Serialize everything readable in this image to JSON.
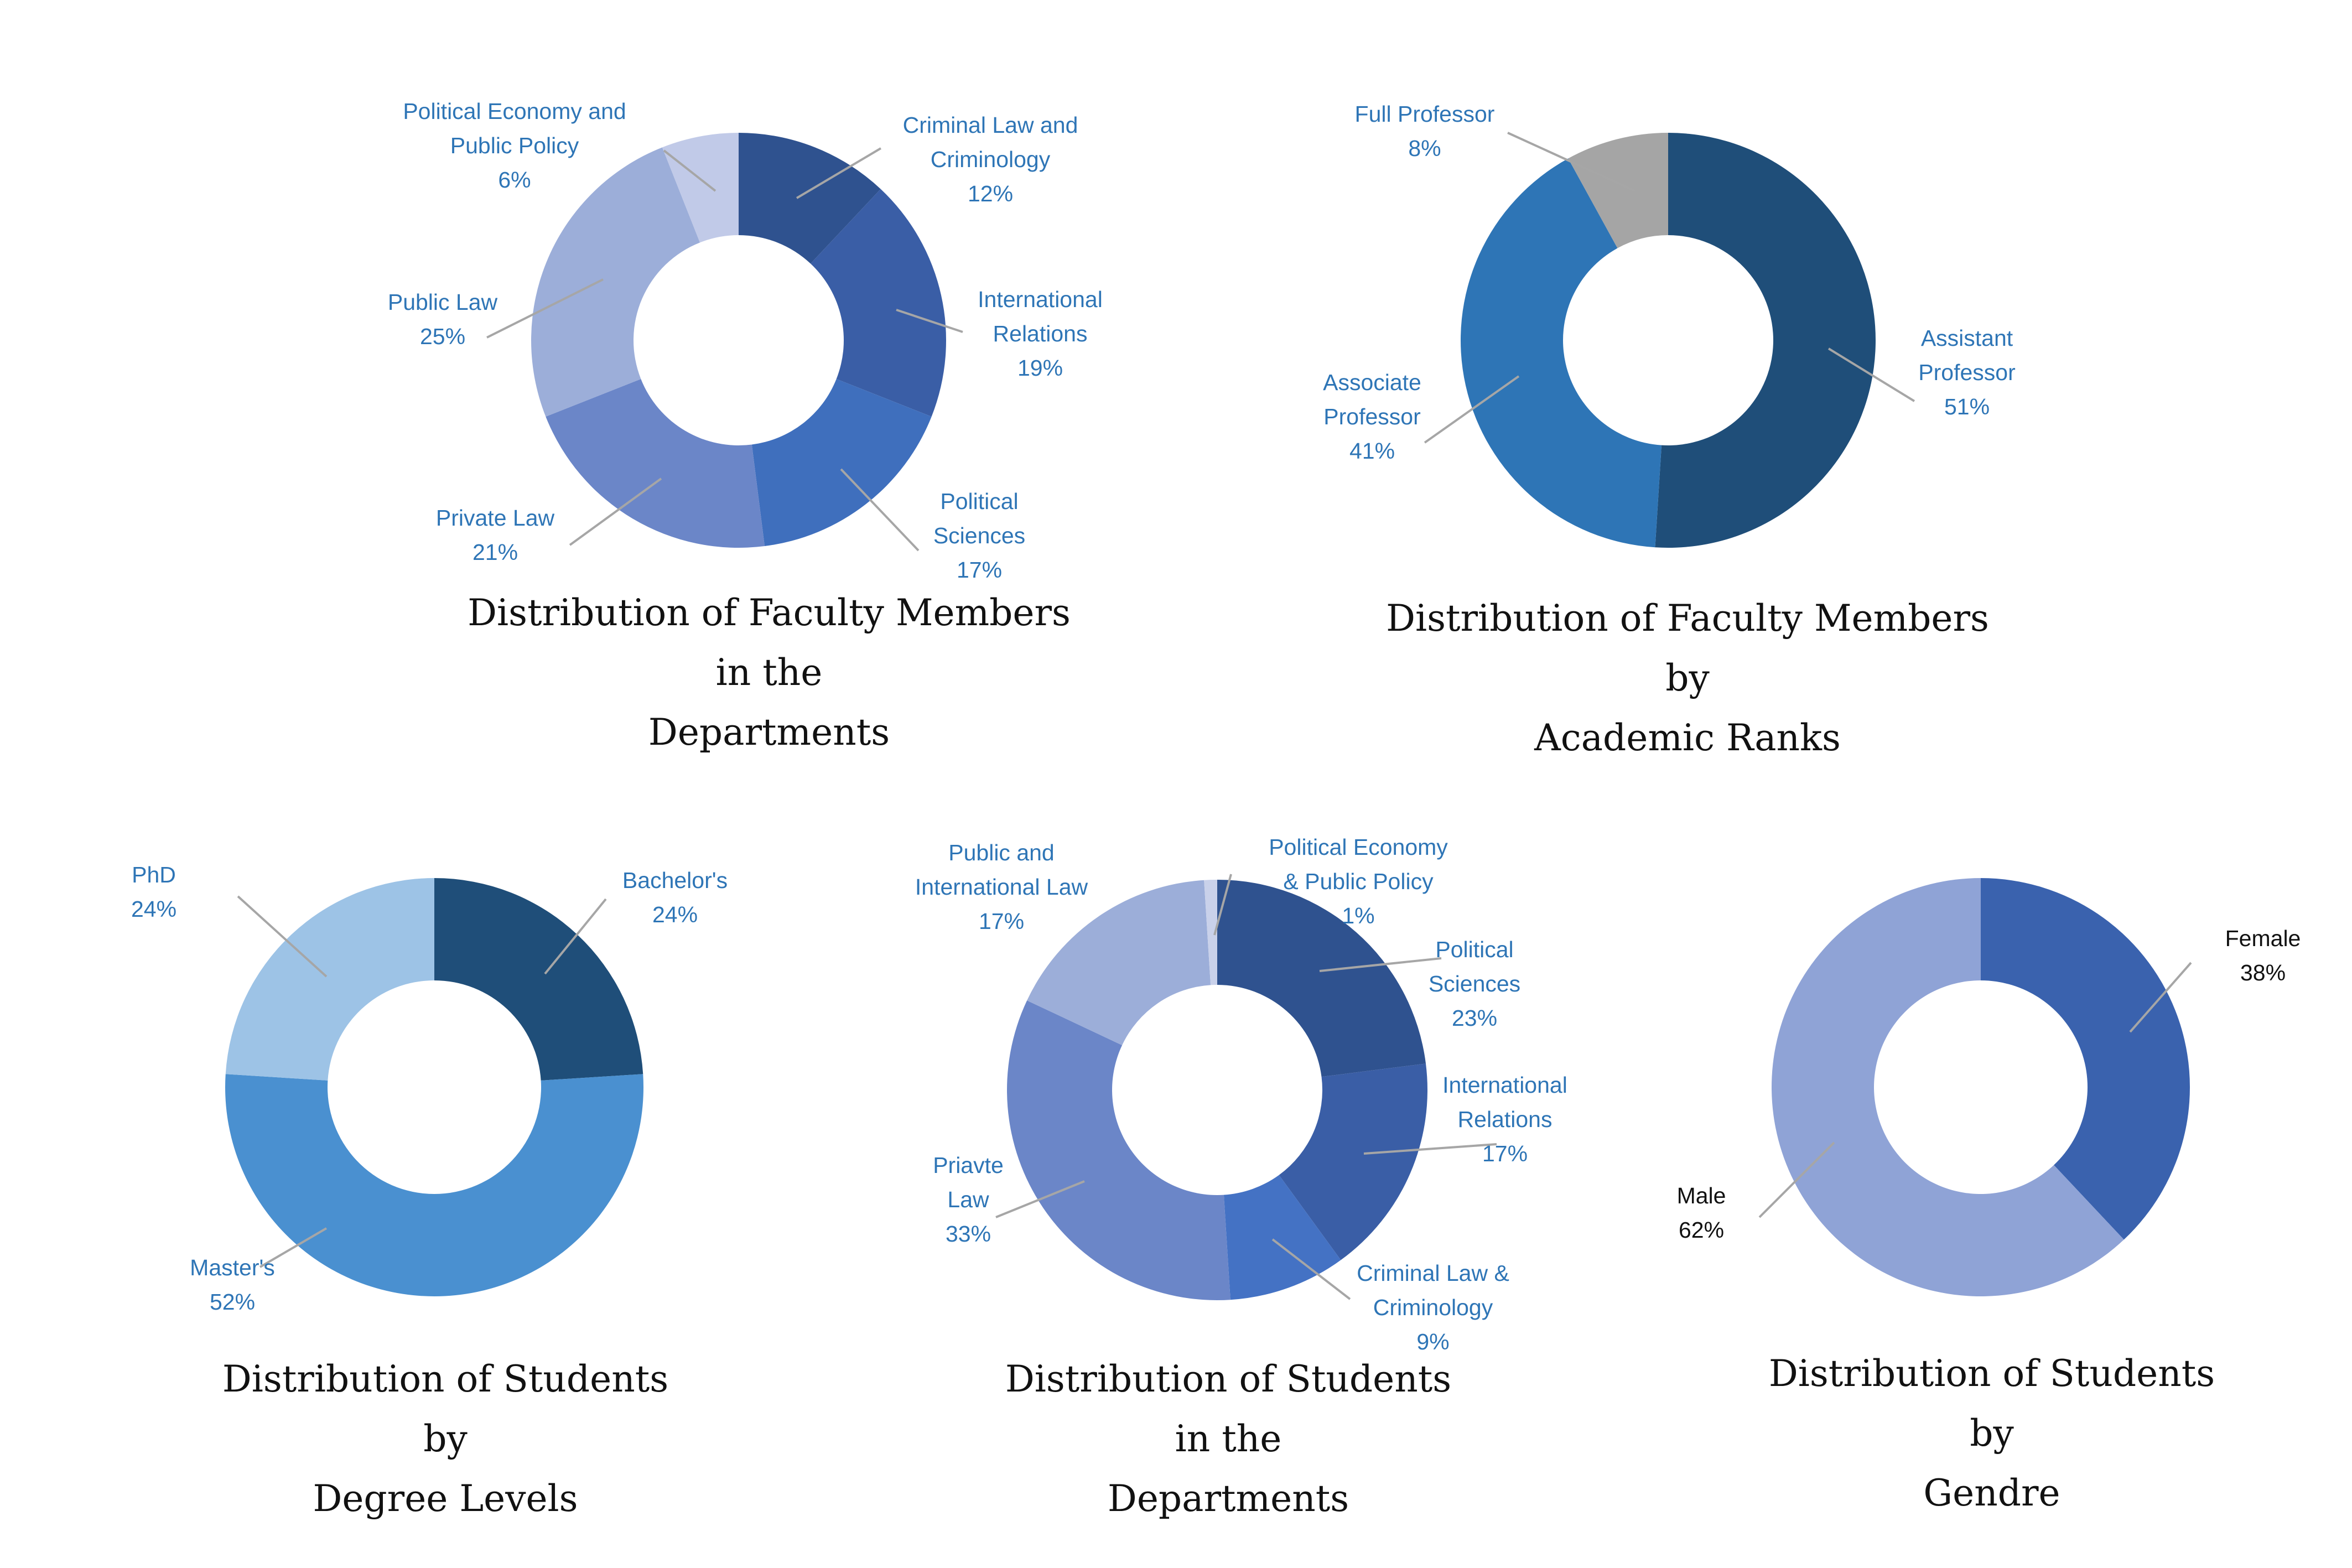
{
  "charts": [
    {
      "id": "faculty-departments",
      "title_lines": [
        "Distribution of Faculty Members",
        "in the",
        "Departments"
      ],
      "label_color": "#2e75b6",
      "chart_data": {
        "type": "pie",
        "title": "Distribution of Faculty Members in the Departments",
        "categories": [
          "Criminal Law and Criminology",
          "International Relations",
          "Political Sciences",
          "Private Law",
          "Public Law",
          "Political Economy and Public Policy"
        ],
        "values": [
          12,
          19,
          17,
          21,
          25,
          6
        ],
        "colors": [
          "#2f528f",
          "#3a5ea6",
          "#3f6fbd",
          "#6b86c8",
          "#9caed9",
          "#c1cae8"
        ]
      },
      "slices": [
        {
          "lines": [
            "Criminal Law and",
            "Criminology",
            "12%"
          ]
        },
        {
          "lines": [
            "International",
            "Relations",
            "19%"
          ]
        },
        {
          "lines": [
            "Political",
            "Sciences",
            "17%"
          ]
        },
        {
          "lines": [
            "Private Law",
            "21%"
          ]
        },
        {
          "lines": [
            "Public Law",
            "25%"
          ]
        },
        {
          "lines": [
            "Political Economy and",
            "Public Policy",
            "6%"
          ]
        }
      ]
    },
    {
      "id": "faculty-ranks",
      "title_lines": [
        "Distribution of Faculty Members",
        "by",
        "Academic Ranks"
      ],
      "label_color": "#2e75b6",
      "chart_data": {
        "type": "pie",
        "title": "Distribution of Faculty Members by Academic Ranks",
        "categories": [
          "Assistant Professor",
          "Associate Professor",
          "Full Professor"
        ],
        "values": [
          51,
          41,
          8
        ],
        "colors": [
          "#1f4e79",
          "#2e75b6",
          "#a5a5a5"
        ]
      },
      "slices": [
        {
          "lines": [
            "Assistant",
            "Professor",
            "51%"
          ]
        },
        {
          "lines": [
            "Associate",
            "Professor",
            "41%"
          ]
        },
        {
          "lines": [
            "Full Professor",
            "8%"
          ]
        }
      ]
    },
    {
      "id": "students-degree",
      "title_lines": [
        "Distribution of Students",
        "by",
        "Degree Levels"
      ],
      "label_color": "#2e75b6",
      "chart_data": {
        "type": "pie",
        "title": "Distribution of Students by Degree Levels",
        "categories": [
          "Bachelor's",
          "Master's",
          "PhD"
        ],
        "values": [
          24,
          52,
          24
        ],
        "colors": [
          "#1f4e79",
          "#4a90d0",
          "#9dc3e6"
        ]
      },
      "slices": [
        {
          "lines": [
            "Bachelor's",
            "24%"
          ]
        },
        {
          "lines": [
            "Master's",
            "52%"
          ]
        },
        {
          "lines": [
            "PhD",
            "24%"
          ]
        }
      ]
    },
    {
      "id": "students-departments",
      "title_lines": [
        "Distribution of Students",
        "in the",
        "Departments"
      ],
      "label_color": "#2e75b6",
      "chart_data": {
        "type": "pie",
        "title": "Distribution of Students in the Departments",
        "categories": [
          "Political Sciences",
          "International Relations",
          "Criminal Law & Criminology",
          "Priavte Law",
          "Public and International Law",
          "Political Economy & Public Policy"
        ],
        "values": [
          23,
          17,
          9,
          33,
          17,
          1
        ],
        "colors": [
          "#2f528f",
          "#3a5ea6",
          "#4472c4",
          "#6b86c8",
          "#9caed9",
          "#c9d1ea"
        ]
      },
      "slices": [
        {
          "lines": [
            "Political",
            "Sciences",
            "23%"
          ]
        },
        {
          "lines": [
            "International",
            "Relations",
            "17%"
          ]
        },
        {
          "lines": [
            "Criminal Law &",
            "Criminology",
            "9%"
          ]
        },
        {
          "lines": [
            "Priavte",
            "Law",
            "33%"
          ]
        },
        {
          "lines": [
            "Public and",
            "International Law",
            "17%"
          ]
        },
        {
          "lines": [
            "Political Economy",
            "& Public Policy",
            "1%"
          ]
        }
      ]
    },
    {
      "id": "students-gender",
      "title_lines": [
        "Distribution of Students",
        "by",
        "Gendre"
      ],
      "label_color": "#111111",
      "chart_data": {
        "type": "pie",
        "title": "Distribution of Students by Gendre",
        "categories": [
          "Female",
          "Male"
        ],
        "values": [
          38,
          62
        ],
        "colors": [
          "#3a62ae",
          "#8fa3d6"
        ]
      },
      "slices": [
        {
          "lines": [
            "Female",
            "38%"
          ]
        },
        {
          "lines": [
            "Male",
            "62%"
          ]
        }
      ]
    }
  ]
}
